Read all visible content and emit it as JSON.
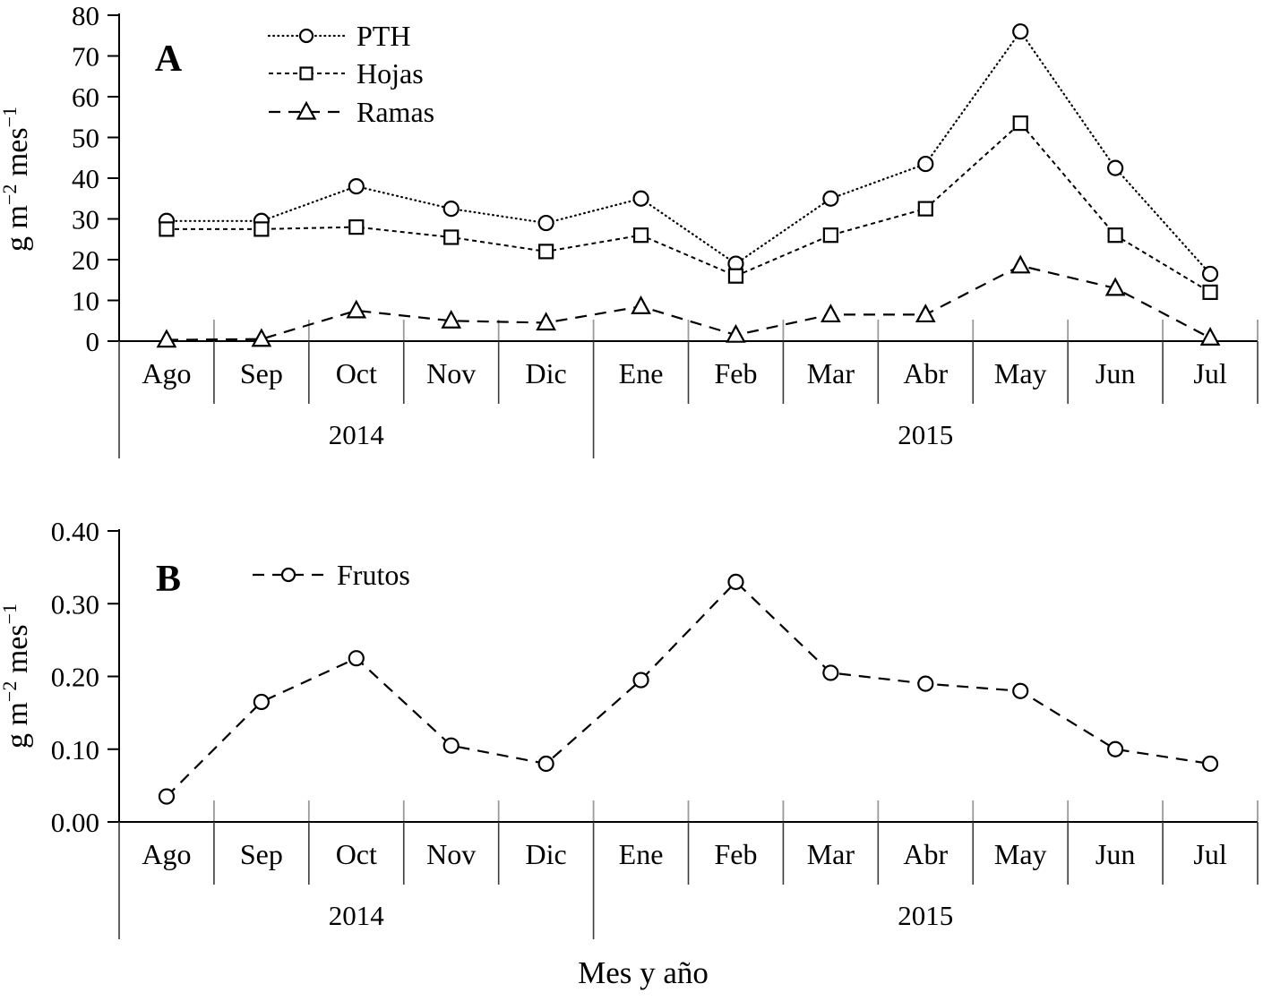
{
  "figure": {
    "xlabel": "Mes y año",
    "background": "#ffffff",
    "ink": "#000000",
    "divider_color": "#3a3a3a",
    "minor_tick_color": "#9a9a9a"
  },
  "chart_data": [
    {
      "type": "line",
      "panel_label": "A",
      "ylabel_parts": [
        {
          "text": "g m",
          "sup": false
        },
        {
          "text": "−2",
          "sup": true
        },
        {
          "text": " mes",
          "sup": false
        },
        {
          "text": "−1",
          "sup": true
        }
      ],
      "categories": [
        "Ago",
        "Sep",
        "Oct",
        "Nov",
        "Dic",
        "Ene",
        "Feb",
        "Mar",
        "Abr",
        "May",
        "Jun",
        "Jul"
      ],
      "year_groups": [
        {
          "label": "2014",
          "from": 0,
          "to": 4
        },
        {
          "label": "2015",
          "from": 5,
          "to": 11
        }
      ],
      "ylim": [
        0,
        80
      ],
      "yticks": [
        {
          "label": "0",
          "value": 0
        },
        {
          "label": "10",
          "value": 10
        },
        {
          "label": "20",
          "value": 20
        },
        {
          "label": "30",
          "value": 30
        },
        {
          "label": "40",
          "value": 40
        },
        {
          "label": "50",
          "value": 50
        },
        {
          "label": "60",
          "value": 60
        },
        {
          "label": "70",
          "value": 70
        },
        {
          "label": "80",
          "value": 80
        }
      ],
      "grid": false,
      "legend_position": "top-left-inside",
      "series": [
        {
          "name": "PTH",
          "marker": "circle",
          "linestyle": "dotted",
          "values": [
            29.5,
            29.5,
            38,
            32.5,
            29,
            35,
            19,
            35,
            43.5,
            76,
            42.5,
            16.5
          ]
        },
        {
          "name": "Hojas",
          "marker": "square",
          "linestyle": "dashed-short",
          "values": [
            27.5,
            27.5,
            28,
            25.5,
            22,
            26,
            16,
            26,
            32.5,
            53.5,
            26,
            12
          ]
        },
        {
          "name": "Ramas",
          "marker": "triangle",
          "linestyle": "dashed-long",
          "values": [
            0.3,
            0.5,
            7.5,
            5,
            4.5,
            8.5,
            1.5,
            6.5,
            6.5,
            18.5,
            13,
            0.8
          ]
        }
      ]
    },
    {
      "type": "line",
      "panel_label": "B",
      "ylabel_parts": [
        {
          "text": "g m",
          "sup": false
        },
        {
          "text": "−2",
          "sup": true
        },
        {
          "text": " mes",
          "sup": false
        },
        {
          "text": "−1",
          "sup": true
        }
      ],
      "categories": [
        "Ago",
        "Sep",
        "Oct",
        "Nov",
        "Dic",
        "Ene",
        "Feb",
        "Mar",
        "Abr",
        "May",
        "Jun",
        "Jul"
      ],
      "year_groups": [
        {
          "label": "2014",
          "from": 0,
          "to": 4
        },
        {
          "label": "2015",
          "from": 5,
          "to": 11
        }
      ],
      "ylim": [
        0,
        0.4
      ],
      "yticks": [
        {
          "label": "0.00",
          "value": 0.0
        },
        {
          "label": "0.10",
          "value": 0.1
        },
        {
          "label": "0.20",
          "value": 0.2
        },
        {
          "label": "0.30",
          "value": 0.3
        },
        {
          "label": "0.40",
          "value": 0.4
        }
      ],
      "grid": false,
      "legend_position": "top-left-inside",
      "series": [
        {
          "name": "Frutos",
          "marker": "circle",
          "linestyle": "dashed-long",
          "values": [
            0.035,
            0.165,
            0.225,
            0.105,
            0.08,
            0.195,
            0.33,
            0.205,
            0.19,
            0.18,
            0.1,
            0.08
          ]
        }
      ]
    }
  ]
}
